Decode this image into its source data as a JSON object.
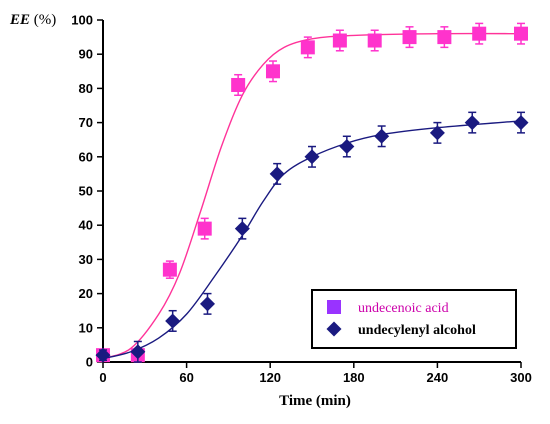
{
  "chart_data": {
    "type": "scatter",
    "title": "",
    "xlabel": "Time (min)",
    "ylabel_italic": "EE",
    "ylabel_rest": " (%)",
    "xlim": [
      0,
      300
    ],
    "ylim": [
      0,
      100
    ],
    "xticks": [
      "0",
      "60",
      "120",
      "180",
      "240",
      "300"
    ],
    "yticks": [
      "0",
      "10",
      "20",
      "30",
      "40",
      "50",
      "60",
      "70",
      "80",
      "90",
      "100"
    ],
    "grid": false,
    "legend_position": "bottom-right",
    "series": [
      {
        "name": "undecenoic acid",
        "marker": "square",
        "color": "#ff33cc",
        "legend_marker_color": "#9933ff",
        "legend_text_color": "#cc00aa",
        "fit_color": "#ff3399",
        "x": [
          0,
          25,
          48,
          73,
          97,
          122,
          147,
          170,
          195,
          220,
          245,
          270,
          300
        ],
        "y": [
          2,
          2,
          27,
          39,
          81,
          85,
          92,
          94,
          94,
          95,
          95,
          96,
          96
        ],
        "error": [
          1.5,
          2,
          2.5,
          3,
          3,
          3,
          3,
          3,
          3,
          3,
          3,
          3,
          3
        ],
        "fit": [
          [
            0,
            1
          ],
          [
            20,
            4
          ],
          [
            40,
            14
          ],
          [
            55,
            26
          ],
          [
            70,
            44
          ],
          [
            85,
            63
          ],
          [
            100,
            78
          ],
          [
            115,
            87
          ],
          [
            130,
            92
          ],
          [
            150,
            94.5
          ],
          [
            180,
            95.5
          ],
          [
            240,
            96
          ],
          [
            300,
            96
          ]
        ]
      },
      {
        "name": "undecylenyl alcohol",
        "marker": "diamond",
        "color": "#1a1a80",
        "legend_marker_color": "#1a1a80",
        "legend_text_color": "#000000",
        "fit_color": "#1a1a80",
        "x": [
          0,
          25,
          50,
          75,
          100,
          125,
          150,
          175,
          200,
          240,
          265,
          300
        ],
        "y": [
          2,
          3,
          12,
          17,
          39,
          55,
          60,
          63,
          66,
          67,
          70,
          70
        ],
        "error": [
          1.5,
          3,
          3,
          3,
          3,
          3,
          3,
          3,
          3,
          3,
          3,
          3
        ],
        "fit": [
          [
            0,
            1
          ],
          [
            20,
            3
          ],
          [
            40,
            7
          ],
          [
            60,
            14
          ],
          [
            80,
            25
          ],
          [
            100,
            37
          ],
          [
            115,
            47
          ],
          [
            130,
            55
          ],
          [
            150,
            60
          ],
          [
            175,
            64
          ],
          [
            200,
            66.5
          ],
          [
            240,
            68.5
          ],
          [
            300,
            70.5
          ]
        ]
      }
    ]
  }
}
